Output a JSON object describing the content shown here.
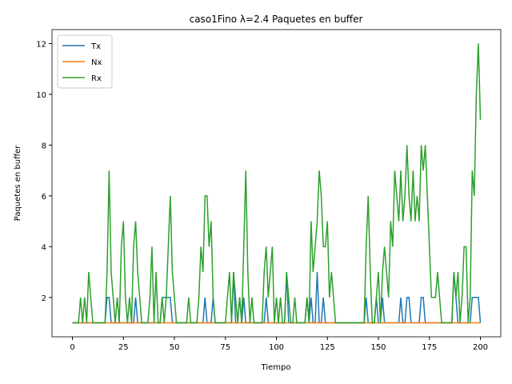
{
  "chart_data": {
    "type": "line",
    "title": "caso1Fino λ=2.4 Paquetes en buffer",
    "xlabel": "Tiempo",
    "ylabel": "Paquetes en buffer",
    "xlim": [
      -10,
      210
    ],
    "ylim": [
      0.45,
      12.55
    ],
    "xticks": [
      0,
      25,
      50,
      75,
      100,
      125,
      150,
      175,
      200
    ],
    "yticks": [
      2,
      4,
      6,
      8,
      10,
      12
    ],
    "legend": "upper left",
    "x": [
      0,
      1,
      2,
      3,
      4,
      5,
      6,
      7,
      8,
      9,
      10,
      11,
      12,
      13,
      14,
      15,
      16,
      17,
      18,
      19,
      20,
      21,
      22,
      23,
      24,
      25,
      26,
      27,
      28,
      29,
      30,
      31,
      32,
      33,
      34,
      35,
      36,
      37,
      38,
      39,
      40,
      41,
      42,
      43,
      44,
      45,
      46,
      47,
      48,
      49,
      50,
      51,
      52,
      53,
      54,
      55,
      56,
      57,
      58,
      59,
      60,
      61,
      62,
      63,
      64,
      65,
      66,
      67,
      68,
      69,
      70,
      71,
      72,
      73,
      74,
      75,
      76,
      77,
      78,
      79,
      80,
      81,
      82,
      83,
      84,
      85,
      86,
      87,
      88,
      89,
      90,
      91,
      92,
      93,
      94,
      95,
      96,
      97,
      98,
      99,
      100,
      101,
      102,
      103,
      104,
      105,
      106,
      107,
      108,
      109,
      110,
      111,
      112,
      113,
      114,
      115,
      116,
      117,
      118,
      119,
      120,
      121,
      122,
      123,
      124,
      125,
      126,
      127,
      128,
      129,
      130,
      131,
      132,
      133,
      134,
      135,
      136,
      137,
      138,
      139,
      140,
      141,
      142,
      143,
      144,
      145,
      146,
      147,
      148,
      149,
      150,
      151,
      152,
      153,
      154,
      155,
      156,
      157,
      158,
      159,
      160,
      161,
      162,
      163,
      164,
      165,
      166,
      167,
      168,
      169,
      170,
      171,
      172,
      173,
      174,
      175,
      176,
      177,
      178,
      179,
      180,
      181,
      182,
      183,
      184,
      185,
      186,
      187,
      188,
      189,
      190,
      191,
      192,
      193,
      194,
      195,
      196,
      197,
      198,
      199,
      200
    ],
    "series": [
      {
        "name": "Tx",
        "color": "#1f77b4",
        "values": [
          1,
          1,
          1,
          1,
          1,
          1,
          1,
          1,
          1,
          1,
          1,
          1,
          1,
          1,
          1,
          1,
          1,
          2,
          2,
          1,
          1,
          1,
          1,
          1,
          1,
          1,
          1,
          1,
          1,
          1,
          1,
          2,
          1,
          1,
          1,
          1,
          1,
          1,
          1,
          1,
          1,
          1,
          1,
          1,
          2,
          2,
          2,
          2,
          2,
          1,
          1,
          1,
          1,
          1,
          1,
          1,
          1,
          1,
          1,
          1,
          1,
          1,
          1,
          1,
          1,
          2,
          1,
          1,
          1,
          2,
          1,
          1,
          1,
          1,
          1,
          1,
          1,
          1,
          1,
          3,
          1,
          1,
          2,
          1,
          2,
          1,
          1,
          1,
          1,
          1,
          1,
          1,
          1,
          1,
          1,
          2,
          1,
          1,
          1,
          1,
          1,
          1,
          1,
          1,
          1,
          3,
          1,
          1,
          1,
          1,
          1,
          1,
          1,
          1,
          1,
          2,
          1,
          2,
          1,
          1,
          3,
          1,
          1,
          2,
          1,
          1,
          1,
          1,
          1,
          1,
          1,
          1,
          1,
          1,
          1,
          1,
          1,
          1,
          1,
          1,
          1,
          1,
          1,
          1,
          2,
          1,
          1,
          1,
          1,
          2,
          1,
          1,
          2,
          1,
          1,
          1,
          1,
          1,
          1,
          1,
          1,
          2,
          1,
          1,
          2,
          2,
          1,
          1,
          1,
          1,
          1,
          2,
          2,
          1,
          1,
          1,
          1,
          1,
          1,
          1,
          1,
          1,
          1,
          1,
          1,
          1,
          1,
          3,
          2,
          1,
          1,
          1,
          1,
          1,
          1,
          1,
          2,
          2,
          2,
          2,
          1
        ]
      },
      {
        "name": "Nx",
        "color": "#ff7f0e",
        "values": [
          1,
          1,
          1,
          1,
          1,
          1,
          1,
          1,
          1,
          1,
          1,
          1,
          1,
          1,
          1,
          1,
          1,
          1,
          1,
          1,
          1,
          1,
          1,
          1,
          1,
          1,
          1,
          1,
          1,
          1,
          1,
          1,
          1,
          1,
          1,
          1,
          1,
          1,
          1,
          1,
          1,
          1,
          1,
          1,
          1,
          1,
          1,
          1,
          1,
          1,
          1,
          1,
          1,
          1,
          1,
          1,
          1,
          1,
          1,
          1,
          1,
          1,
          1,
          1,
          1,
          1,
          1,
          1,
          1,
          1,
          1,
          1,
          1,
          1,
          1,
          1,
          1,
          1,
          1,
          1,
          1,
          1,
          1,
          1,
          1,
          1,
          1,
          1,
          1,
          1,
          1,
          1,
          1,
          1,
          1,
          1,
          1,
          1,
          1,
          1,
          1,
          1,
          1,
          1,
          1,
          1,
          1,
          1,
          1,
          1,
          1,
          1,
          1,
          1,
          1,
          1,
          1,
          1,
          1,
          1,
          1,
          1,
          1,
          1,
          1,
          1,
          1,
          1,
          1,
          1,
          1,
          1,
          1,
          1,
          1,
          1,
          1,
          1,
          1,
          1,
          1,
          1,
          1,
          1,
          1,
          1,
          1,
          1,
          1,
          1,
          1,
          1,
          1,
          1,
          1,
          1,
          1,
          1,
          1,
          1,
          1,
          1,
          1,
          1,
          1,
          1,
          1,
          1,
          1,
          1,
          1,
          1,
          1,
          1,
          1,
          1,
          1,
          1,
          1,
          1,
          1,
          1,
          1,
          1,
          1,
          1,
          1,
          1,
          1,
          1,
          1,
          1,
          1,
          1,
          1,
          1,
          1,
          1,
          1,
          1,
          1
        ]
      },
      {
        "name": "Rx",
        "color": "#2ca02c",
        "values": [
          1,
          1,
          1,
          1,
          2,
          1,
          2,
          1,
          3,
          2,
          1,
          1,
          1,
          1,
          1,
          1,
          1,
          3,
          7,
          3,
          2,
          1,
          2,
          1,
          4,
          5,
          2,
          1,
          2,
          1,
          4,
          5,
          3,
          2,
          1,
          1,
          1,
          1,
          2,
          4,
          1,
          3,
          1,
          1,
          2,
          1,
          2,
          4,
          6,
          3,
          2,
          1,
          1,
          1,
          1,
          1,
          1,
          2,
          1,
          1,
          1,
          1,
          2,
          4,
          3,
          6,
          6,
          4,
          5,
          2,
          1,
          1,
          1,
          1,
          1,
          1,
          2,
          3,
          1,
          3,
          2,
          1,
          2,
          1,
          4,
          7,
          3,
          1,
          2,
          1,
          1,
          1,
          1,
          1,
          3,
          4,
          2,
          3,
          4,
          1,
          2,
          1,
          2,
          1,
          1,
          3,
          2,
          1,
          1,
          2,
          1,
          1,
          1,
          1,
          1,
          2,
          1,
          5,
          3,
          4,
          5,
          7,
          6,
          4,
          4,
          5,
          2,
          3,
          2,
          1,
          1,
          1,
          1,
          1,
          1,
          1,
          1,
          1,
          1,
          1,
          1,
          1,
          1,
          1,
          4,
          6,
          3,
          1,
          1,
          2,
          3,
          1,
          3,
          4,
          3,
          2,
          5,
          4,
          7,
          6,
          5,
          7,
          5,
          6,
          8,
          6,
          5,
          7,
          5,
          6,
          5,
          8,
          7,
          8,
          6,
          4,
          2,
          2,
          2,
          3,
          2,
          1,
          1,
          1,
          1,
          1,
          1,
          3,
          2,
          3,
          1,
          2,
          4,
          4,
          1,
          2,
          7,
          6,
          10,
          12,
          9
        ]
      }
    ]
  }
}
